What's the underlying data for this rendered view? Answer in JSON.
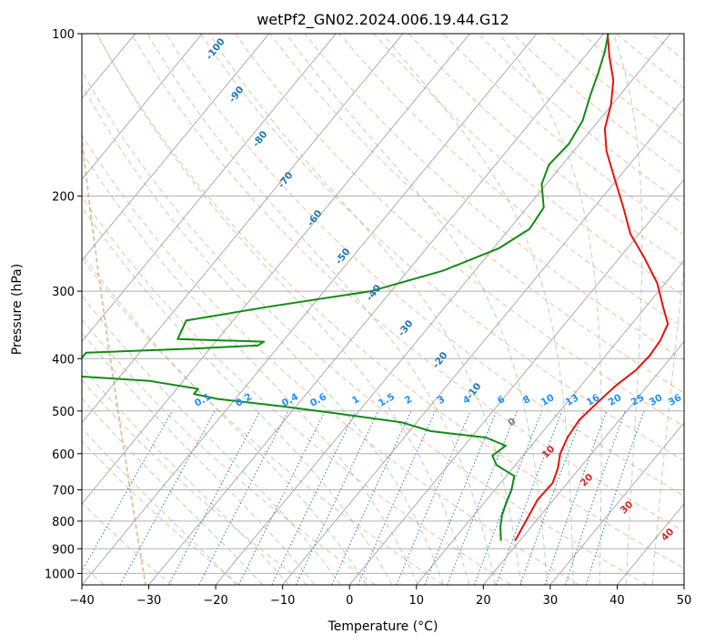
{
  "chart_data": {
    "type": "skew-t",
    "title": "wetPf2_GN02.2024.006.19.44.G12",
    "xlabel": "Temperature (°C)",
    "ylabel": "Pressure (hPa)",
    "xlim": [
      -40,
      50
    ],
    "ylim": [
      1050,
      100
    ],
    "y_scale": "log",
    "grid": true,
    "x_ticks": [
      -40,
      -30,
      -20,
      -10,
      0,
      10,
      20,
      30,
      40,
      50
    ],
    "x_tick_labels": [
      "−40",
      "−30",
      "−20",
      "−10",
      "0",
      "10",
      "20",
      "30",
      "40",
      "50"
    ],
    "y_ticks": [
      100,
      200,
      300,
      400,
      500,
      600,
      700,
      800,
      900,
      1000
    ],
    "y_tick_labels": [
      "100",
      "200",
      "300",
      "400",
      "500",
      "600",
      "700",
      "800",
      "900",
      "1000"
    ],
    "series": [
      {
        "color": "#e8120b",
        "points": [
          {
            "p": 870,
            "t": 19.3
          },
          {
            "p": 800,
            "t": 18.5
          },
          {
            "p": 730,
            "t": 17.6
          },
          {
            "p": 680,
            "t": 17.8
          },
          {
            "p": 640,
            "t": 16.8
          },
          {
            "p": 600,
            "t": 15.3
          },
          {
            "p": 560,
            "t": 14.4
          },
          {
            "p": 520,
            "t": 14.0
          },
          {
            "p": 480,
            "t": 14.6
          },
          {
            "p": 450,
            "t": 15.2
          },
          {
            "p": 420,
            "t": 16.3
          },
          {
            "p": 395,
            "t": 16.6
          },
          {
            "p": 370,
            "t": 16.3
          },
          {
            "p": 345,
            "t": 15.4
          },
          {
            "p": 320,
            "t": 12.5
          },
          {
            "p": 290,
            "t": 8.8
          },
          {
            "p": 260,
            "t": 3.7
          },
          {
            "p": 235,
            "t": -1.3
          },
          {
            "p": 210,
            "t": -5.6
          },
          {
            "p": 185,
            "t": -10.6
          },
          {
            "p": 165,
            "t": -15.1
          },
          {
            "p": 150,
            "t": -18.1
          },
          {
            "p": 135,
            "t": -20.2
          },
          {
            "p": 122,
            "t": -22.8
          },
          {
            "p": 110,
            "t": -26.4
          },
          {
            "p": 100,
            "t": -29.4
          }
        ]
      },
      {
        "color": "#138a13",
        "points": [
          {
            "p": 870,
            "t": 17.2
          },
          {
            "p": 820,
            "t": 15.4
          },
          {
            "p": 780,
            "t": 14.2
          },
          {
            "p": 740,
            "t": 13.3
          },
          {
            "p": 700,
            "t": 12.5
          },
          {
            "p": 660,
            "t": 11.2
          },
          {
            "p": 630,
            "t": 7.2
          },
          {
            "p": 605,
            "t": 5.4
          },
          {
            "p": 580,
            "t": 6.2
          },
          {
            "p": 560,
            "t": 2.2
          },
          {
            "p": 545,
            "t": -6.8
          },
          {
            "p": 525,
            "t": -12.2
          },
          {
            "p": 505,
            "t": -23.2
          },
          {
            "p": 490,
            "t": -32.2
          },
          {
            "p": 475,
            "t": -42.6
          },
          {
            "p": 465,
            "t": -46.8
          },
          {
            "p": 455,
            "t": -46.8
          },
          {
            "p": 440,
            "t": -55.0
          },
          {
            "p": 430,
            "t": -68.0
          },
          {
            "p": 390,
            "t": -68.0
          },
          {
            "p": 383,
            "t": -52.0
          },
          {
            "p": 378,
            "t": -43.2
          },
          {
            "p": 372,
            "t": -42.8
          },
          {
            "p": 368,
            "t": -56.0
          },
          {
            "p": 340,
            "t": -57.0
          },
          {
            "p": 320,
            "t": -46.1
          },
          {
            "p": 300,
            "t": -33.0
          },
          {
            "p": 275,
            "t": -24.8
          },
          {
            "p": 250,
            "t": -19.2
          },
          {
            "p": 230,
            "t": -17.0
          },
          {
            "p": 210,
            "t": -17.5
          },
          {
            "p": 190,
            "t": -20.7
          },
          {
            "p": 175,
            "t": -22.0
          },
          {
            "p": 160,
            "t": -21.6
          },
          {
            "p": 145,
            "t": -22.4
          },
          {
            "p": 130,
            "t": -24.4
          },
          {
            "p": 118,
            "t": -26.0
          },
          {
            "p": 108,
            "t": -27.6
          },
          {
            "p": 100,
            "t": -29.3
          }
        ]
      }
    ],
    "dry_adiabat_labels": [
      "-100",
      "-90",
      "-80",
      "-70",
      "-60",
      "-50",
      "-40",
      "-30",
      "-20",
      "-10"
    ],
    "mixing_ratio_labels": [
      "0.1",
      "0.2",
      "0.4",
      "0.6",
      "1",
      "1.5",
      "2",
      "3",
      "4",
      "6",
      "8",
      "10",
      "13",
      "16",
      "20",
      "25",
      "30",
      "36"
    ],
    "moist_adiabat_labels": [
      "0",
      "10",
      "20",
      "30",
      "40"
    ],
    "colors": {
      "dry_adiabat": "#f4a582",
      "moist_adiabat": "#7fbf7b",
      "mixing_ratio": "#1e78d2",
      "isotherm": "#9a9a9a",
      "grid": "#b0b0b0",
      "dry_label": "#1f77b4",
      "moist_label": "#d62728",
      "mixing_label": "#1e90ff",
      "zero_label": "#808080",
      "background_curve": "#d9b48a"
    }
  }
}
